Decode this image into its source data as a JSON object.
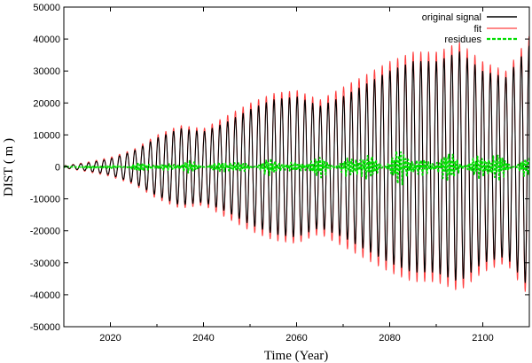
{
  "chart_data": {
    "type": "line",
    "title": "",
    "xlabel": "Time (Year)",
    "ylabel": "DIST ( m )",
    "xlim": [
      2010,
      2110
    ],
    "ylim": [
      -50000,
      50000
    ],
    "x_ticks": [
      2020,
      2040,
      2060,
      2080,
      2100
    ],
    "y_ticks": [
      -50000,
      -40000,
      -30000,
      -20000,
      -10000,
      0,
      10000,
      20000,
      30000,
      40000,
      50000
    ],
    "grid": false,
    "legend_position": "top-right",
    "oscillation_period_years": 1.66,
    "series": [
      {
        "name": "original signal",
        "color": "#000000",
        "style": "solid",
        "envelope": {
          "x": [
            2010,
            2015,
            2020,
            2025,
            2030,
            2035,
            2040,
            2045,
            2050,
            2055,
            2060,
            2065,
            2070,
            2075,
            2080,
            2085,
            2090,
            2095,
            2100,
            2105,
            2110
          ],
          "y": [
            300,
            1200,
            2500,
            5000,
            9000,
            12000,
            11000,
            14000,
            18000,
            21000,
            22000,
            19000,
            22000,
            26000,
            30000,
            33000,
            33000,
            36000,
            30000,
            28000,
            38000
          ]
        }
      },
      {
        "name": "fit",
        "color": "#ff4040",
        "style": "solid",
        "envelope": {
          "x": [
            2010,
            2015,
            2020,
            2025,
            2030,
            2035,
            2040,
            2045,
            2050,
            2055,
            2060,
            2065,
            2070,
            2075,
            2080,
            2085,
            2090,
            2095,
            2100,
            2105,
            2110
          ],
          "y": [
            350,
            1500,
            3000,
            5500,
            10000,
            13000,
            12000,
            16000,
            20000,
            23000,
            24000,
            21000,
            25000,
            29000,
            33000,
            36000,
            36000,
            39000,
            33000,
            30000,
            41000
          ]
        }
      },
      {
        "name": "residues",
        "color": "#00dd00",
        "style": "dashed",
        "envelope": {
          "x": [
            2010,
            2020,
            2030,
            2040,
            2050,
            2060,
            2070,
            2080,
            2090,
            2100,
            2110
          ],
          "y": [
            400,
            800,
            2500,
            2500,
            3000,
            4000,
            5000,
            8000,
            6000,
            7000,
            5000
          ]
        }
      }
    ]
  }
}
